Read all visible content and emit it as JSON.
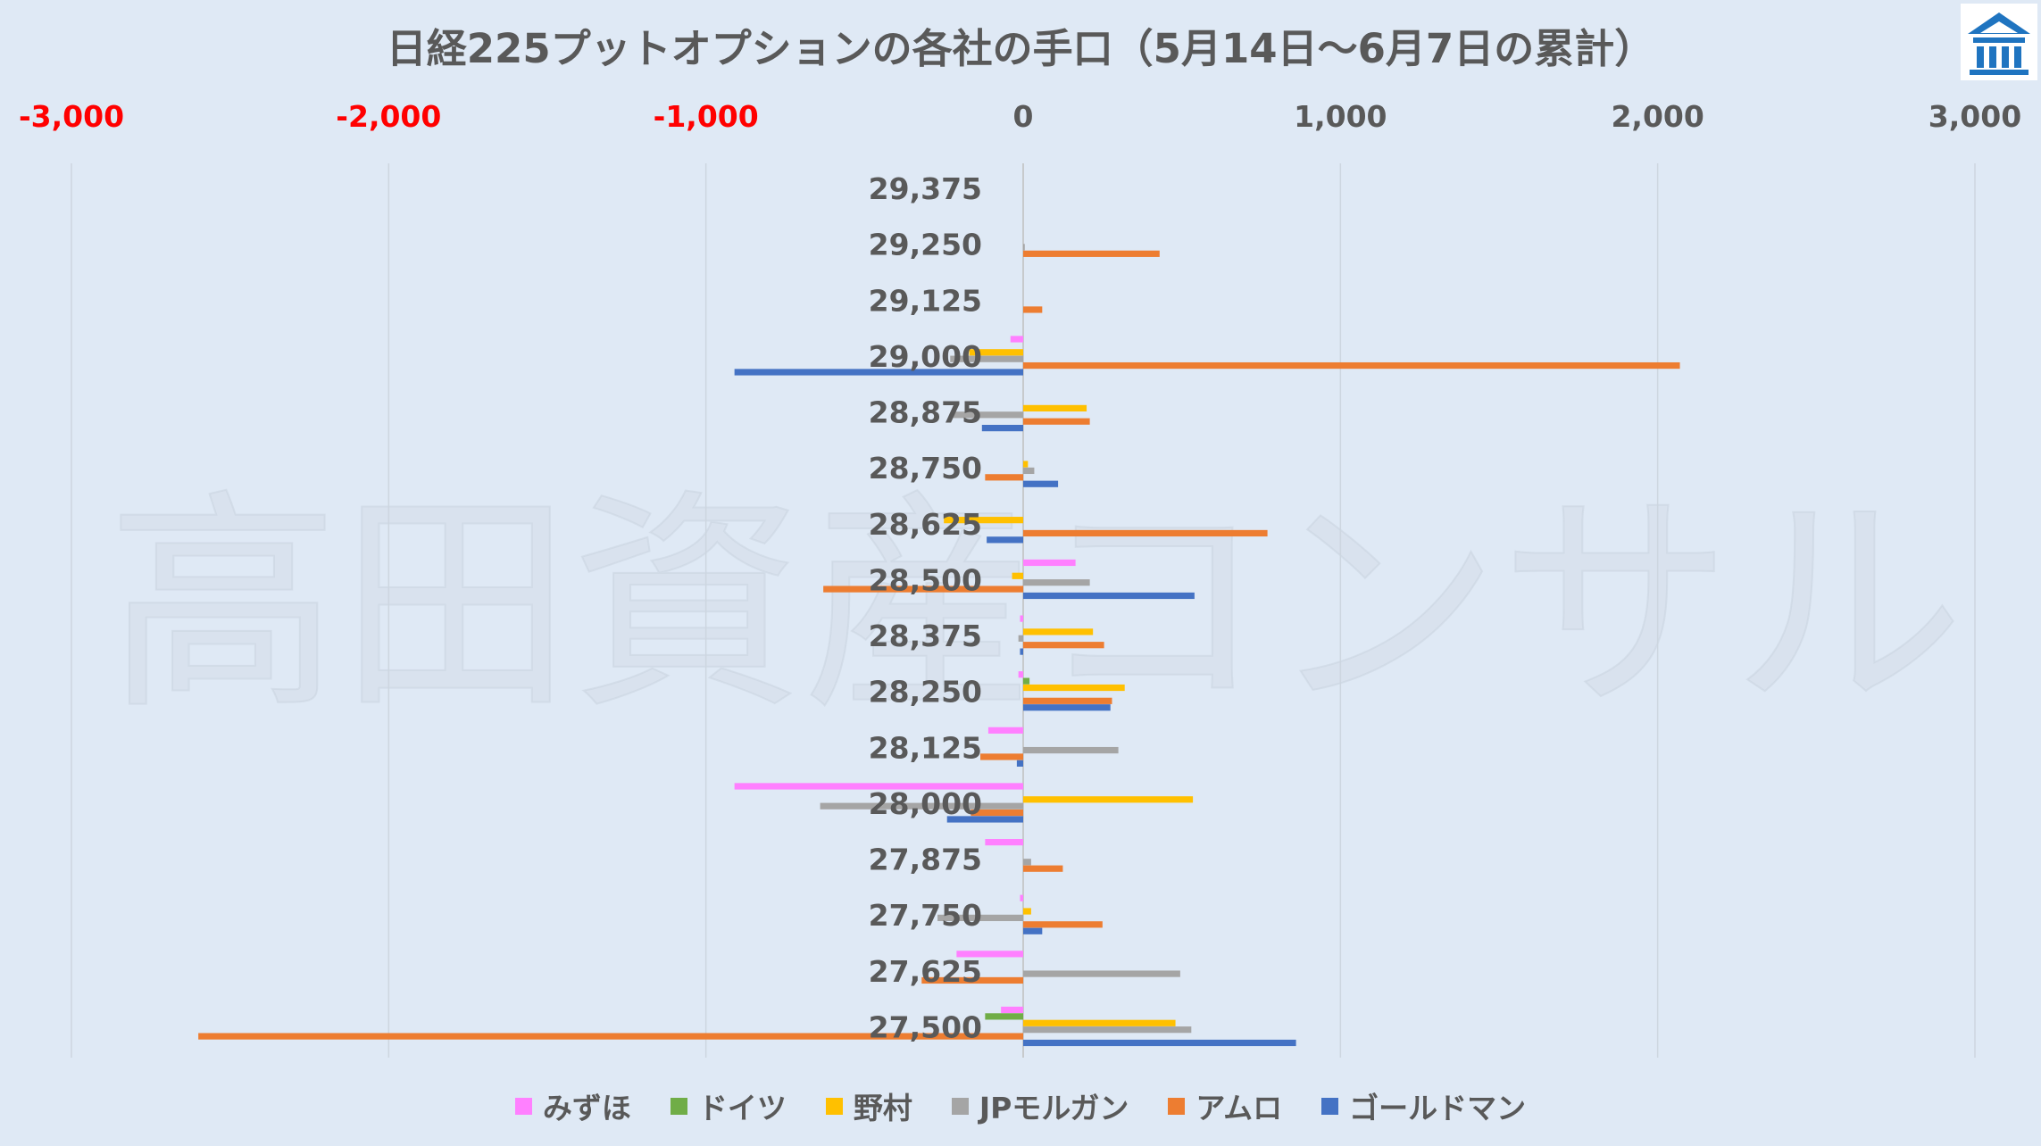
{
  "title": "日経225プットオプションの各社の手口（5月14日～6月7日の累計）",
  "watermark": "高田資産コンサル",
  "logo": {
    "icon": "building-icon",
    "color": "#1f74c0"
  },
  "colors": {
    "background": "#dfe9f5",
    "negative_tick": "#ff0000",
    "positive_tick": "#595959",
    "gridline": "#cdd6e0",
    "axis": "#bfbfbf"
  },
  "chart_data": {
    "type": "bar",
    "orientation": "horizontal",
    "title": "日経225プットオプションの各社の手口（5月14日～6月7日の累計）",
    "xlim": [
      -3000,
      3000
    ],
    "xticks": [
      -3000,
      -2000,
      -1000,
      0,
      1000,
      2000,
      3000
    ],
    "xtick_labels": [
      "-3,000",
      "-2,000",
      "-1,000",
      "0",
      "1,000",
      "2,000",
      "3,000"
    ],
    "x_axis_position": "top",
    "grid": true,
    "legend_position": "bottom",
    "categories": [
      "29,375",
      "29,250",
      "29,125",
      "29,000",
      "28,875",
      "28,750",
      "28,625",
      "28,500",
      "28,375",
      "28,250",
      "28,125",
      "28,000",
      "27,875",
      "27,750",
      "27,625",
      "27,500"
    ],
    "series": [
      {
        "name": "みずほ",
        "color": "#ff80ff",
        "values": [
          0,
          0,
          0,
          -40,
          0,
          0,
          0,
          165,
          -10,
          -15,
          -110,
          -910,
          -120,
          -10,
          -210,
          -70
        ]
      },
      {
        "name": "ドイツ",
        "color": "#70ad47",
        "values": [
          0,
          0,
          0,
          0,
          0,
          0,
          0,
          0,
          0,
          20,
          0,
          0,
          0,
          0,
          0,
          -120
        ]
      },
      {
        "name": "野村",
        "color": "#ffc000",
        "values": [
          0,
          0,
          0,
          -170,
          200,
          15,
          -250,
          -35,
          220,
          320,
          0,
          535,
          0,
          25,
          0,
          480
        ]
      },
      {
        "name": "JPモルガン",
        "color": "#a5a5a5",
        "values": [
          0,
          5,
          0,
          -230,
          -220,
          35,
          0,
          210,
          -15,
          0,
          300,
          -640,
          25,
          -270,
          495,
          530
        ]
      },
      {
        "name": "アムロ",
        "color": "#ed7d31",
        "values": [
          0,
          430,
          60,
          2070,
          210,
          -120,
          770,
          -630,
          255,
          280,
          -135,
          -165,
          125,
          250,
          -320,
          -2600
        ]
      },
      {
        "name": "ゴールドマン",
        "color": "#4472c4",
        "values": [
          0,
          0,
          0,
          -910,
          -130,
          110,
          -115,
          540,
          -10,
          275,
          -20,
          -240,
          0,
          60,
          0,
          860
        ]
      }
    ]
  }
}
